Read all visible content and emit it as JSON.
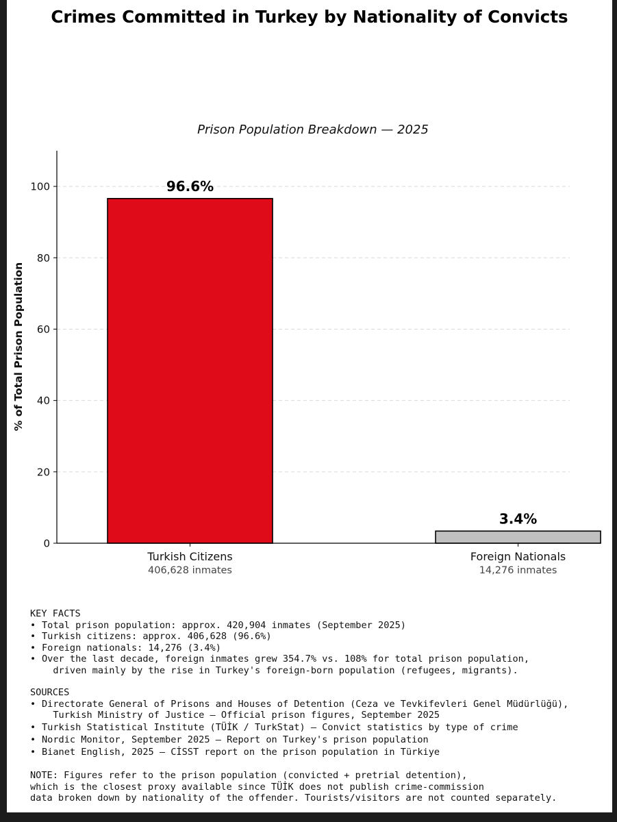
{
  "title": "Crimes Committed in Turkey by Nationality of Convicts",
  "chart_data": {
    "type": "bar",
    "subtitle": "Prison Population Breakdown — 2025",
    "ylabel": "% of Total Prison Population",
    "xlabel": "",
    "ylim": [
      0,
      110
    ],
    "yticks": [
      0,
      20,
      40,
      60,
      80,
      100
    ],
    "grid": "horizontal dashed",
    "categories": [
      "Turkish Citizens",
      "Foreign Nationals"
    ],
    "category_sublabels": [
      "406,628 inmates",
      "14,276 inmates"
    ],
    "values": [
      96.6,
      3.4
    ],
    "value_labels": [
      "96.6%",
      "3.4%"
    ],
    "colors": [
      "#e00b19",
      "#c0c0c0"
    ]
  },
  "key_facts": {
    "heading": "KEY FACTS",
    "items": [
      "Total prison population: approx. 420,904 inmates (September 2025)",
      "Turkish citizens: approx. 406,628 (96.6%)",
      "Foreign nationals: 14,276 (3.4%)",
      "Over the last decade, foreign inmates grew 354.7% vs. 108% for total prison population,\n  driven mainly by the rise in Turkey's foreign-born population (refugees, migrants)."
    ]
  },
  "sources": {
    "heading": "SOURCES",
    "items": [
      "Directorate General of Prisons and Houses of Detention (Ceza ve Tevkifevleri Genel Müdürlüğü),\n  Turkish Ministry of Justice — Official prison figures, September 2025",
      "Turkish Statistical Institute (TÜİK / TurkStat) — Convict statistics by type of crime",
      "Nordic Monitor, September 2025 — Report on Turkey's prison population",
      "Bianet English, 2025 — CİSST report on the prison population in Türkiye"
    ]
  },
  "note": {
    "lines": [
      "NOTE: Figures refer to the prison population (convicted + pretrial detention),",
      "which is the closest proxy available since TÜİK does not publish crime-commission",
      "data broken down by nationality of the offender. Tourists/visitors are not counted separately."
    ]
  }
}
